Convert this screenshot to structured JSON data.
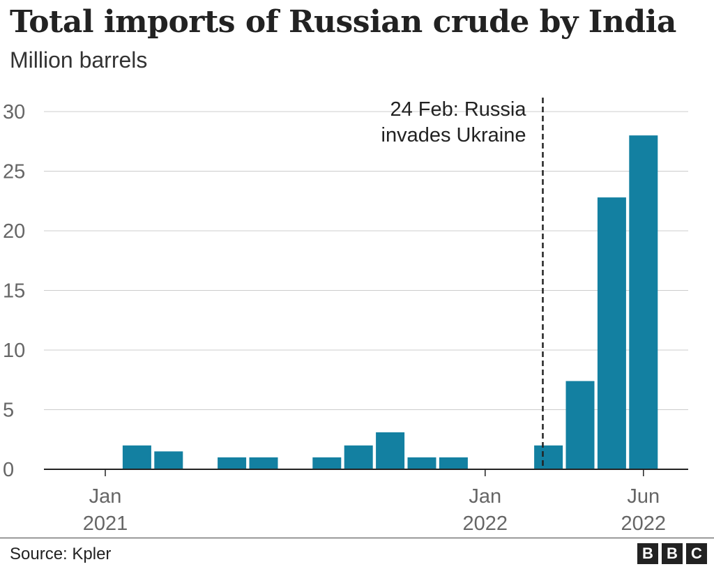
{
  "title": "Total imports of Russian crude by India",
  "subtitle": "Million barrels",
  "source": "Source: Kpler",
  "logo": [
    "B",
    "B",
    "C"
  ],
  "colors": {
    "bar": "#1380A1",
    "grid": "#cccccc",
    "axis": "#222222",
    "tick_label": "#666666",
    "annotation": "#222222"
  },
  "chart_data": {
    "type": "bar",
    "title": "Total imports of Russian crude by India",
    "ylabel": "Million barrels",
    "xlabel": "",
    "ylim": [
      0,
      30
    ],
    "yticks": [
      0,
      5,
      10,
      15,
      20,
      25,
      30
    ],
    "grid": true,
    "categories": [
      "Jan 2021",
      "Feb 2021",
      "Mar 2021",
      "Apr 2021",
      "May 2021",
      "Jun 2021",
      "Jul 2021",
      "Aug 2021",
      "Sep 2021",
      "Oct 2021",
      "Nov 2021",
      "Dec 2021",
      "Jan 2022",
      "Feb 2022",
      "Mar 2022",
      "Apr 2022",
      "May 2022",
      "Jun 2022"
    ],
    "values": [
      0,
      2.0,
      1.5,
      0,
      1.0,
      1.0,
      0,
      1.0,
      2.0,
      3.1,
      1.0,
      1.0,
      0,
      0,
      2.0,
      7.4,
      22.8,
      28.0
    ],
    "x_tick_labels": [
      {
        "category": "Jan 2021",
        "month": "Jan",
        "year": "2021"
      },
      {
        "category": "Jan 2022",
        "month": "Jan",
        "year": "2022"
      },
      {
        "category": "Jun 2022",
        "month": "Jun",
        "year": "2022"
      }
    ],
    "annotation": {
      "date": "2022-02-24",
      "lines": [
        "24 Feb: Russia",
        "invades Ukraine"
      ]
    }
  }
}
